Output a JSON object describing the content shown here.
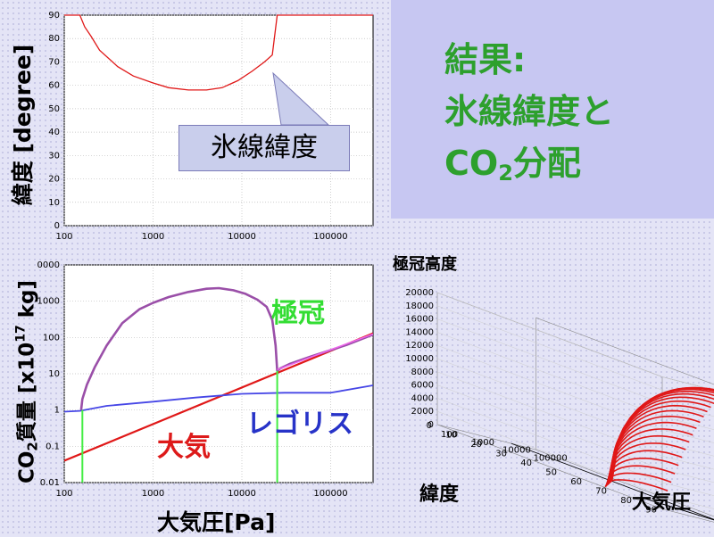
{
  "title": {
    "line1": "結果:",
    "line2": "氷線緯度と",
    "line3_prefix": "CO",
    "line3_sub": "2",
    "line3_suffix": "分配"
  },
  "callout_label": "氷線緯度",
  "labels": {
    "polar_cap": "極冠",
    "atmosphere": "大気",
    "regolith": "レゴリス"
  },
  "p3_title": "極冠高度",
  "p3_ylabel": "緯度",
  "p3_xlabel": "大気圧",
  "colors": {
    "title": "#2da02d",
    "ice_line": "#e01818",
    "cap": "#9a4fa8",
    "atm": "#e01818",
    "reg": "#4646e6",
    "cap_label": "#33dd33",
    "reg_label": "#2733c8"
  },
  "chart_data": [
    {
      "type": "line",
      "ylabel": {
        "prefix": "緯度",
        "suffix": "[degree]"
      },
      "xscale": "log",
      "xlim": [
        100,
        300000
      ],
      "ylim": [
        0,
        90
      ],
      "yticks": [
        "0",
        "10",
        "20",
        "30",
        "40",
        "50",
        "60",
        "70",
        "80",
        "90"
      ],
      "xticks": [
        "100",
        "1000",
        "10000",
        "100000"
      ],
      "grid": true,
      "series": [
        {
          "x": [
            100,
            150,
            170,
            200,
            250,
            400,
            600,
            1000,
            1500,
            2500,
            4000,
            6000,
            9000,
            13000,
            18000,
            22000,
            25000,
            300000
          ],
          "y": [
            90,
            90,
            85,
            81,
            75,
            68,
            64,
            61,
            59,
            58,
            58,
            59,
            62,
            66,
            70,
            73,
            90,
            90
          ]
        }
      ]
    },
    {
      "type": "line",
      "ylabel": {
        "prefix": "CO",
        "sub": "2",
        "middle": "質量 [x10",
        "sup": "17",
        "suffix": " kg]"
      },
      "xlabel": "大気圧[Pa]",
      "xscale": "log",
      "yscale": "log",
      "xlim": [
        100,
        300000
      ],
      "ylim": [
        0.01,
        10000
      ],
      "yticks": [
        "0.01",
        "0.1",
        "1",
        "10",
        "100",
        "1000",
        "0000"
      ],
      "xticks": [
        "100",
        "1000",
        "10000",
        "100000"
      ],
      "grid": true,
      "series": [
        {
          "x": [
            100,
            300000
          ],
          "y": [
            0.04,
            130
          ]
        },
        {
          "x": [
            100,
            150,
            300,
            1000,
            3000,
            10000,
            30000,
            100000,
            300000
          ],
          "y": [
            0.9,
            0.95,
            1.3,
            1.7,
            2.2,
            2.8,
            3.0,
            3.0,
            4.8
          ]
        },
        {
          "x": [
            155,
            160,
            180,
            220,
            300,
            450,
            700,
            1000,
            1500,
            2500,
            4000,
            5500,
            8000,
            11000,
            15000,
            19000,
            22000,
            24000,
            25000,
            27000,
            35000,
            60000,
            150000,
            300000
          ],
          "y": [
            1,
            2,
            5,
            15,
            60,
            250,
            600,
            900,
            1300,
            1800,
            2200,
            2300,
            2000,
            1600,
            1100,
            700,
            300,
            60,
            12,
            14,
            19,
            30,
            62,
            120
          ]
        },
        {
          "x": [
            160,
            160
          ],
          "y": [
            0.01,
            1
          ]
        },
        {
          "x": [
            25000,
            25000
          ],
          "y": [
            0.01,
            12
          ]
        }
      ]
    },
    {
      "type": "line",
      "dimensions": 3,
      "zticks": [
        "0",
        "2000",
        "4000",
        "6000",
        "8000",
        "10000",
        "12000",
        "14000",
        "16000",
        "18000",
        "20000"
      ],
      "yticks": [
        "0",
        "10",
        "20",
        "30",
        "40",
        "50",
        "60",
        "70",
        "80",
        "90"
      ],
      "xticks": [
        "100",
        "1000",
        "10000",
        "100000"
      ]
    }
  ]
}
